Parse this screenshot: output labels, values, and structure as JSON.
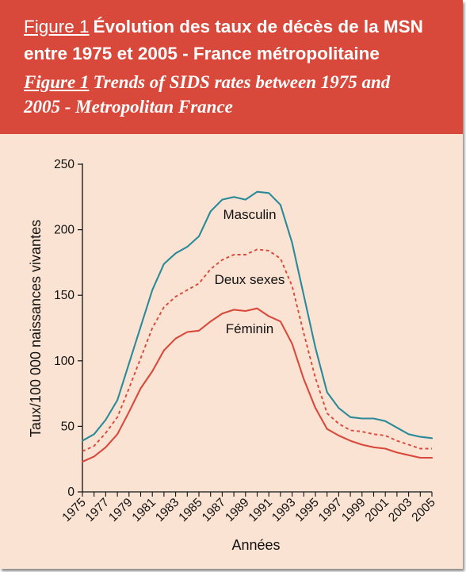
{
  "header": {
    "figure_label_fr": "Figure 1",
    "title_fr_line1": "Évolution des taux de décès de la MSN",
    "title_fr_line2": "entre 1975 et 2005 - France métropolitaine",
    "figure_label_en": "Figure 1",
    "title_en_line1": "Trends of SIDS rates between 1975 and",
    "title_en_line2": "2005 - Metropolitan France"
  },
  "colors": {
    "header_bg": "#d9493b",
    "panel_bg": "#fbe3d3",
    "masculin": "#2a8a9a",
    "deux_sexes": "#d9493b",
    "feminin": "#d9493b"
  },
  "chart_data": {
    "type": "line",
    "xlabel": "Années",
    "ylabel": "Taux/100 000 naissances vivantes",
    "xlim": [
      1975,
      2005
    ],
    "ylim": [
      0,
      250
    ],
    "x_ticks": [
      "1975",
      "1977",
      "1979",
      "1981",
      "1983",
      "1985",
      "1987",
      "1989",
      "1991",
      "1993",
      "1995",
      "1997",
      "1999",
      "2001",
      "2003",
      "2005"
    ],
    "y_ticks": [
      "0",
      "50",
      "100",
      "150",
      "200",
      "250"
    ],
    "grid": false,
    "x": [
      1975,
      1976,
      1977,
      1978,
      1979,
      1980,
      1981,
      1982,
      1983,
      1984,
      1985,
      1986,
      1987,
      1988,
      1989,
      1990,
      1991,
      1992,
      1993,
      1994,
      1995,
      1996,
      1997,
      1998,
      1999,
      2000,
      2001,
      2002,
      2003,
      2004,
      2005
    ],
    "series": [
      {
        "name": "Masculin",
        "style": "solid",
        "color": "#2a8a9a",
        "values": [
          39,
          44,
          55,
          70,
          98,
          126,
          154,
          174,
          182,
          187,
          195,
          214,
          223,
          225,
          223,
          229,
          228,
          219,
          190,
          150,
          110,
          76,
          64,
          57,
          56,
          56,
          54,
          49,
          44,
          42,
          41
        ]
      },
      {
        "name": "Deux sexes",
        "style": "dashed",
        "color": "#d9493b",
        "values": [
          31,
          35,
          45,
          57,
          79,
          102,
          125,
          141,
          149,
          154,
          159,
          170,
          177,
          181,
          181,
          185,
          184,
          178,
          157,
          121,
          87,
          60,
          52,
          47,
          46,
          44,
          43,
          39,
          36,
          33,
          33
        ]
      },
      {
        "name": "Féminin",
        "style": "solid",
        "color": "#d9493b",
        "values": [
          23,
          27,
          34,
          44,
          61,
          79,
          92,
          108,
          117,
          122,
          123,
          130,
          136,
          139,
          138,
          140,
          134,
          130,
          113,
          86,
          64,
          48,
          43,
          39,
          36,
          34,
          33,
          30,
          28,
          26,
          26
        ]
      }
    ]
  }
}
